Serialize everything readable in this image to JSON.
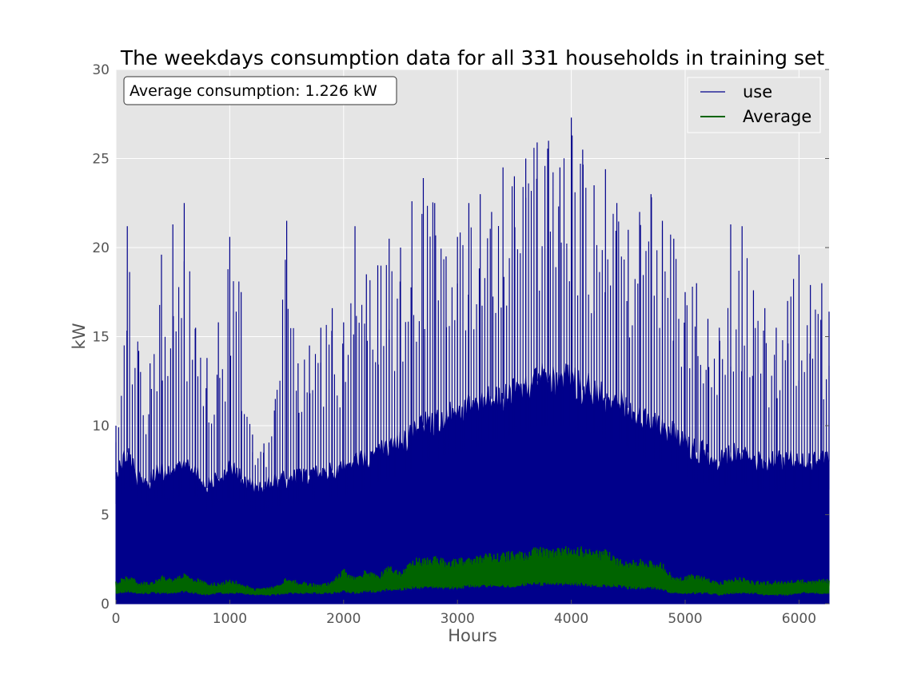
{
  "chart_data": {
    "type": "line",
    "title": "The weekdays consumption data for all 331 households in training set",
    "xlabel": "Hours",
    "ylabel": "kW",
    "xlim": [
      0,
      6264
    ],
    "ylim": [
      0,
      30
    ],
    "x_ticks": [
      0,
      1000,
      2000,
      3000,
      4000,
      5000,
      6000
    ],
    "y_ticks": [
      0,
      5,
      10,
      15,
      20,
      25,
      30
    ],
    "grid": true,
    "legend_position": "top-right",
    "annotation": "Average consumption: 1.226 kW",
    "series": [
      {
        "name": "use",
        "color": "#00008b",
        "description": "hourly consumption of all households (dense, approx. 0 to 27.3 kW)",
        "x": [
          0,
          100,
          200,
          300,
          400,
          500,
          600,
          700,
          800,
          900,
          1000,
          1100,
          1200,
          1300,
          1400,
          1500,
          1600,
          1700,
          1800,
          1900,
          2000,
          2100,
          2200,
          2300,
          2400,
          2500,
          2600,
          2700,
          2800,
          2900,
          3000,
          3100,
          3200,
          3300,
          3400,
          3500,
          3600,
          3700,
          3800,
          3900,
          4000,
          4100,
          4200,
          4300,
          4400,
          4500,
          4600,
          4700,
          4800,
          4900,
          5000,
          5100,
          5200,
          5300,
          5400,
          5500,
          5600,
          5700,
          5800,
          5900,
          6000,
          6100,
          6200,
          6264
        ],
        "peaks": [
          10.0,
          21.2,
          14.2,
          13.5,
          19.6,
          21.3,
          22.5,
          15.5,
          13.8,
          15.8,
          20.6,
          17.5,
          9.5,
          9.0,
          11.5,
          21.5,
          13.5,
          14.5,
          15.5,
          16.6,
          15.8,
          21.2,
          18.5,
          19.0,
          20.5,
          20.0,
          22.6,
          23.9,
          22.5,
          19.5,
          20.6,
          22.5,
          23.0,
          22.0,
          24.5,
          24.0,
          25.0,
          25.9,
          26.0,
          24.5,
          27.3,
          25.5,
          23.5,
          24.4,
          22.5,
          21.0,
          22.0,
          23.0,
          21.5,
          20.5,
          17.5,
          18.0,
          16.0,
          15.5,
          21.3,
          21.2,
          17.6,
          16.6,
          15.5,
          17.0,
          19.6,
          17.9,
          18.0,
          16.4
        ],
        "troughs": [
          7.0,
          8.5,
          7.0,
          6.8,
          7.5,
          7.0,
          8.0,
          7.5,
          6.5,
          7.0,
          7.5,
          7.0,
          6.5,
          6.5,
          6.8,
          7.0,
          7.0,
          7.2,
          7.5,
          7.5,
          7.5,
          8.0,
          8.0,
          8.5,
          8.8,
          9.0,
          9.5,
          10.0,
          10.0,
          10.5,
          10.5,
          11.0,
          11.0,
          11.5,
          11.5,
          12.0,
          12.0,
          12.5,
          12.5,
          12.5,
          12.5,
          12.0,
          12.0,
          11.5,
          11.5,
          11.0,
          10.5,
          10.0,
          10.0,
          9.5,
          9.0,
          8.5,
          8.5,
          8.0,
          8.5,
          8.5,
          8.0,
          8.0,
          8.0,
          8.0,
          8.0,
          8.0,
          8.0,
          8.0
        ]
      },
      {
        "name": "Average",
        "color": "#006400",
        "description": "average hourly consumption",
        "x": [
          0,
          100,
          200,
          300,
          400,
          500,
          600,
          700,
          800,
          900,
          1000,
          1100,
          1200,
          1300,
          1400,
          1500,
          1600,
          1700,
          1800,
          1900,
          2000,
          2100,
          2200,
          2300,
          2400,
          2500,
          2600,
          2700,
          2800,
          2900,
          3000,
          3100,
          3200,
          3300,
          3400,
          3500,
          3600,
          3700,
          3800,
          3900,
          4000,
          4100,
          4200,
          4300,
          4400,
          4500,
          4600,
          4700,
          4800,
          4900,
          5000,
          5100,
          5200,
          5300,
          5400,
          5500,
          5600,
          5700,
          5800,
          5900,
          6000,
          6100,
          6200,
          6264
        ],
        "high": [
          1.3,
          1.6,
          1.3,
          1.2,
          1.6,
          1.4,
          1.7,
          1.5,
          1.2,
          1.2,
          1.4,
          1.2,
          0.9,
          0.9,
          1.0,
          1.5,
          1.3,
          1.2,
          1.1,
          1.3,
          2.0,
          1.5,
          2.0,
          1.6,
          2.2,
          1.8,
          2.6,
          2.6,
          2.7,
          2.5,
          2.6,
          2.7,
          2.8,
          2.9,
          2.9,
          3.0,
          3.0,
          3.3,
          3.1,
          3.2,
          3.4,
          3.2,
          3.0,
          3.1,
          2.6,
          2.4,
          2.6,
          2.5,
          2.3,
          1.5,
          1.6,
          1.7,
          1.5,
          1.2,
          1.5,
          1.5,
          1.3,
          1.3,
          1.3,
          1.3,
          1.4,
          1.3,
          1.4,
          1.4
        ],
        "low": [
          0.6,
          0.7,
          0.6,
          0.6,
          0.6,
          0.6,
          0.7,
          0.6,
          0.5,
          0.6,
          0.6,
          0.6,
          0.5,
          0.5,
          0.5,
          0.6,
          0.6,
          0.6,
          0.6,
          0.6,
          0.7,
          0.6,
          0.7,
          0.7,
          0.8,
          0.8,
          0.9,
          0.9,
          0.9,
          0.9,
          0.9,
          1.0,
          1.0,
          1.0,
          1.0,
          1.0,
          1.1,
          1.1,
          1.1,
          1.1,
          1.1,
          1.1,
          1.0,
          1.0,
          1.0,
          0.9,
          0.9,
          0.9,
          0.8,
          0.6,
          0.6,
          0.6,
          0.6,
          0.5,
          0.6,
          0.6,
          0.6,
          0.5,
          0.5,
          0.5,
          0.6,
          0.6,
          0.6,
          0.6
        ]
      }
    ]
  }
}
